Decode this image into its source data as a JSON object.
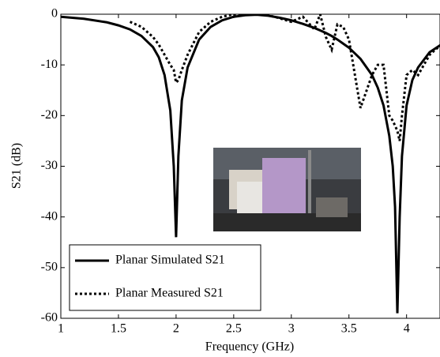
{
  "chart_data": {
    "type": "line",
    "xlabel": "Frequency (GHz)",
    "ylabel": "S21 (dB)",
    "x": [
      1.0,
      1.2,
      1.4,
      1.5,
      1.6,
      1.7,
      1.8,
      1.85,
      1.9,
      1.95,
      1.98,
      2.0,
      2.02,
      2.05,
      2.1,
      2.2,
      2.3,
      2.4,
      2.5,
      2.6,
      2.7,
      2.8,
      2.9,
      3.0,
      3.1,
      3.2,
      3.25,
      3.3,
      3.35,
      3.4,
      3.45,
      3.5,
      3.6,
      3.7,
      3.75,
      3.8,
      3.85,
      3.88,
      3.9,
      3.92,
      3.94,
      3.96,
      4.0,
      4.05,
      4.1,
      4.2,
      4.3
    ],
    "series": [
      {
        "name": "Planar Simulated S21",
        "color": "#000000",
        "dash": "solid",
        "values": [
          -0.5,
          -0.9,
          -1.6,
          -2.2,
          -3,
          -4.3,
          -6.5,
          -8.5,
          -12,
          -19,
          -30,
          -44,
          -28,
          -17,
          -10.5,
          -5,
          -2.5,
          -1.2,
          -0.5,
          -0.2,
          -0.1,
          -0.3,
          -0.7,
          -1.2,
          -1.9,
          -2.7,
          -3.2,
          -3.7,
          -4.3,
          -5,
          -5.8,
          -6.6,
          -8.8,
          -12,
          -14.5,
          -18,
          -24,
          -30,
          -38,
          -59,
          -40,
          -28,
          -18,
          -13,
          -10.5,
          -7.5,
          -6
        ]
      },
      {
        "name": "Planar Measured S21",
        "color": "#000000",
        "dash": "dotted",
        "values": [
          null,
          null,
          null,
          null,
          -1.5,
          -2.5,
          -4.5,
          -6,
          -8,
          -10,
          -11,
          -13.5,
          -13,
          -11,
          -8,
          -3.5,
          -1.5,
          -0.5,
          0,
          -0.1,
          0,
          -0.2,
          -0.8,
          -1.5,
          -0.5,
          -3,
          0,
          -4.5,
          -7,
          -2,
          -2.5,
          -5,
          -18.5,
          -12,
          -10,
          -10,
          -20,
          -21,
          -22,
          -23,
          -25,
          -20,
          -12,
          -11,
          -12,
          -8,
          -6
        ]
      }
    ],
    "xlim": [
      1,
      4.29
    ],
    "ylim": [
      -60,
      0
    ],
    "xticks": [
      1,
      1.5,
      2,
      2.5,
      3,
      3.5,
      4
    ],
    "yticks": [
      -60,
      -50,
      -40,
      -30,
      -20,
      -10,
      0
    ],
    "legend": "lower left",
    "grid": false
  }
}
